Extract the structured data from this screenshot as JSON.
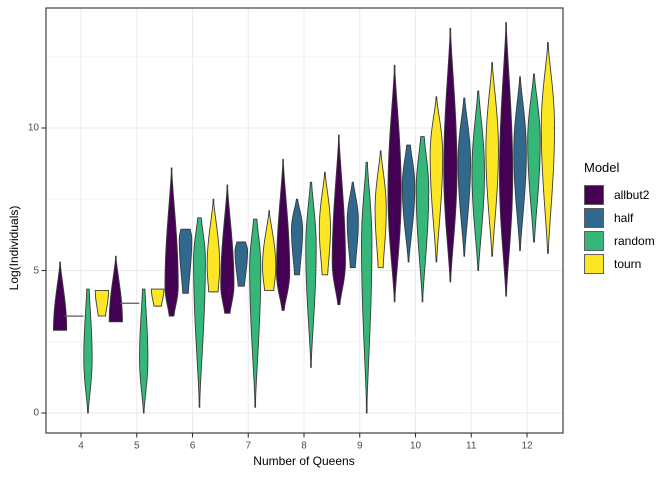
{
  "chart_data": {
    "type": "violin",
    "title": "",
    "xlabel": "Number of Queens",
    "ylabel": "Log(Individuals)",
    "legend_title": "Model",
    "x_categories": [
      4,
      5,
      6,
      7,
      8,
      9,
      10,
      11,
      12
    ],
    "y_ticks": [
      0,
      5,
      10
    ],
    "y_minor_ticks": [
      2.5,
      7.5,
      12.5
    ],
    "ylim": [
      -0.7,
      14.2
    ],
    "grid": true,
    "legend_position": "right",
    "colors": {
      "panel_border": "#3f3f3f",
      "grid_major": "#ebebeb",
      "grid_minor": "#f2f2f2",
      "violin_outline": "#3b3b3b",
      "tick_mark": "#333333",
      "tick_text": "#4d4d4d"
    },
    "series": [
      {
        "name": "allbut2",
        "color": "#440154",
        "violins": [
          {
            "q": 4,
            "min": 2.9,
            "max": 5.3,
            "peak": 0,
            "end_lo": 1,
            "end_hi": 0.02,
            "width": 0.95
          },
          {
            "q": 5,
            "min": 3.2,
            "max": 5.5,
            "peak": 0,
            "end_lo": 1,
            "end_hi": 0.02,
            "width": 0.95
          },
          {
            "q": 6,
            "min": 3.4,
            "max": 8.6,
            "peak": 0.2,
            "end_lo": 0.35,
            "end_hi": 0.02,
            "width": 0.95
          },
          {
            "q": 7,
            "min": 3.5,
            "max": 8.0,
            "peak": 0.22,
            "end_lo": 0.4,
            "end_hi": 0.02,
            "width": 0.95
          },
          {
            "q": 8,
            "min": 3.6,
            "max": 8.9,
            "peak": 0.25,
            "end_lo": 0.15,
            "end_hi": 0.02,
            "width": 0.95
          },
          {
            "q": 9,
            "min": 3.8,
            "max": 9.75,
            "peak": 0.25,
            "end_lo": 0.15,
            "end_hi": 0.02,
            "width": 0.95
          },
          {
            "q": 10,
            "min": 3.9,
            "max": 12.2,
            "peak": 0.46,
            "end_lo": 0.03,
            "end_hi": 0.02,
            "width": 0.95
          },
          {
            "q": 11,
            "min": 4.6,
            "max": 13.5,
            "peak": 0.44,
            "end_lo": 0.04,
            "end_hi": 0.02,
            "width": 0.95
          },
          {
            "q": 12,
            "min": 4.1,
            "max": 13.7,
            "peak": 0.44,
            "end_lo": 0.04,
            "end_hi": 0.02,
            "width": 0.95
          }
        ]
      },
      {
        "name": "half",
        "color": "#31688e",
        "violins": [
          {
            "q": 4,
            "flat": true,
            "value": 3.4
          },
          {
            "q": 5,
            "flat": true,
            "value": 3.85
          },
          {
            "q": 6,
            "min": 4.2,
            "max": 6.45,
            "peak": 0.85,
            "end_lo": 0.45,
            "end_hi": 0.75,
            "width": 0.9
          },
          {
            "q": 7,
            "min": 4.45,
            "max": 6.0,
            "peak": 0.8,
            "end_lo": 0.5,
            "end_hi": 0.7,
            "width": 0.9
          },
          {
            "q": 8,
            "min": 4.85,
            "max": 7.5,
            "peak": 0.6,
            "end_lo": 0.45,
            "end_hi": 0.12,
            "width": 0.8
          },
          {
            "q": 9,
            "min": 5.1,
            "max": 8.1,
            "peak": 0.55,
            "end_lo": 0.45,
            "end_hi": 0.1,
            "width": 0.8
          },
          {
            "q": 10,
            "min": 5.3,
            "max": 9.4,
            "peak": 0.65,
            "end_lo": 0.05,
            "end_hi": 0.3,
            "width": 0.9
          },
          {
            "q": 11,
            "min": 5.5,
            "max": 11.05,
            "peak": 0.6,
            "end_lo": 0.05,
            "end_hi": 0.08,
            "width": 0.9
          },
          {
            "q": 12,
            "min": 5.7,
            "max": 11.8,
            "peak": 0.57,
            "end_lo": 0.05,
            "end_hi": 0.05,
            "width": 0.9
          }
        ]
      },
      {
        "name": "random",
        "color": "#35b779",
        "violins": [
          {
            "q": 4,
            "min": 0.0,
            "max": 4.35,
            "peak": 0.44,
            "end_lo": 0.05,
            "end_hi": 0.3,
            "width": 0.6
          },
          {
            "q": 5,
            "min": 0.0,
            "max": 4.35,
            "peak": 0.44,
            "end_lo": 0.05,
            "end_hi": 0.3,
            "width": 0.6
          },
          {
            "q": 6,
            "min": 0.2,
            "max": 6.85,
            "peak": 0.78,
            "end_lo": 0.02,
            "end_hi": 0.3,
            "width": 0.85
          },
          {
            "q": 7,
            "min": 0.2,
            "max": 6.8,
            "peak": 0.75,
            "end_lo": 0.02,
            "end_hi": 0.3,
            "width": 0.8
          },
          {
            "q": 8,
            "min": 1.6,
            "max": 8.1,
            "peak": 0.65,
            "end_lo": 0.02,
            "end_hi": 0.12,
            "width": 0.75
          },
          {
            "q": 9,
            "min": 0.0,
            "max": 8.8,
            "peak": 0.68,
            "end_lo": 0.01,
            "end_hi": 0.12,
            "width": 0.75
          },
          {
            "q": 10,
            "min": 3.9,
            "max": 9.7,
            "peak": 0.68,
            "end_lo": 0.03,
            "end_hi": 0.28,
            "width": 0.9
          },
          {
            "q": 11,
            "min": 5.0,
            "max": 11.3,
            "peak": 0.55,
            "end_lo": 0.05,
            "end_hi": 0.08,
            "width": 0.9
          },
          {
            "q": 12,
            "min": 6.0,
            "max": 11.9,
            "peak": 0.6,
            "end_lo": 0.08,
            "end_hi": 0.06,
            "width": 0.9
          }
        ]
      },
      {
        "name": "tourn",
        "color": "#fde725",
        "violins": [
          {
            "q": 4,
            "min": 3.4,
            "max": 4.3,
            "peak": 1,
            "end_lo": 0.55,
            "end_hi": 1,
            "width": 0.95
          },
          {
            "q": 5,
            "min": 3.75,
            "max": 4.35,
            "peak": 1,
            "end_lo": 0.6,
            "end_hi": 1,
            "width": 0.9
          },
          {
            "q": 6,
            "min": 4.25,
            "max": 7.5,
            "peak": 0.28,
            "end_lo": 0.75,
            "end_hi": 0.02,
            "width": 0.9
          },
          {
            "q": 7,
            "min": 4.3,
            "max": 7.1,
            "peak": 0.3,
            "end_lo": 0.7,
            "end_hi": 0.02,
            "width": 0.95
          },
          {
            "q": 8,
            "min": 4.85,
            "max": 8.45,
            "peak": 0.45,
            "end_lo": 0.5,
            "end_hi": 0.04,
            "width": 0.8
          },
          {
            "q": 9,
            "min": 5.1,
            "max": 9.2,
            "peak": 0.5,
            "end_lo": 0.45,
            "end_hi": 0.04,
            "width": 0.8
          },
          {
            "q": 10,
            "min": 5.3,
            "max": 11.1,
            "peak": 0.65,
            "end_lo": 0.05,
            "end_hi": 0.03,
            "width": 0.9
          },
          {
            "q": 11,
            "min": 5.5,
            "max": 12.3,
            "peak": 0.55,
            "end_lo": 0.05,
            "end_hi": 0.03,
            "width": 0.9
          },
          {
            "q": 12,
            "min": 5.6,
            "max": 13.0,
            "peak": 0.6,
            "end_lo": 0.05,
            "end_hi": 0.02,
            "width": 0.95
          }
        ]
      }
    ]
  }
}
